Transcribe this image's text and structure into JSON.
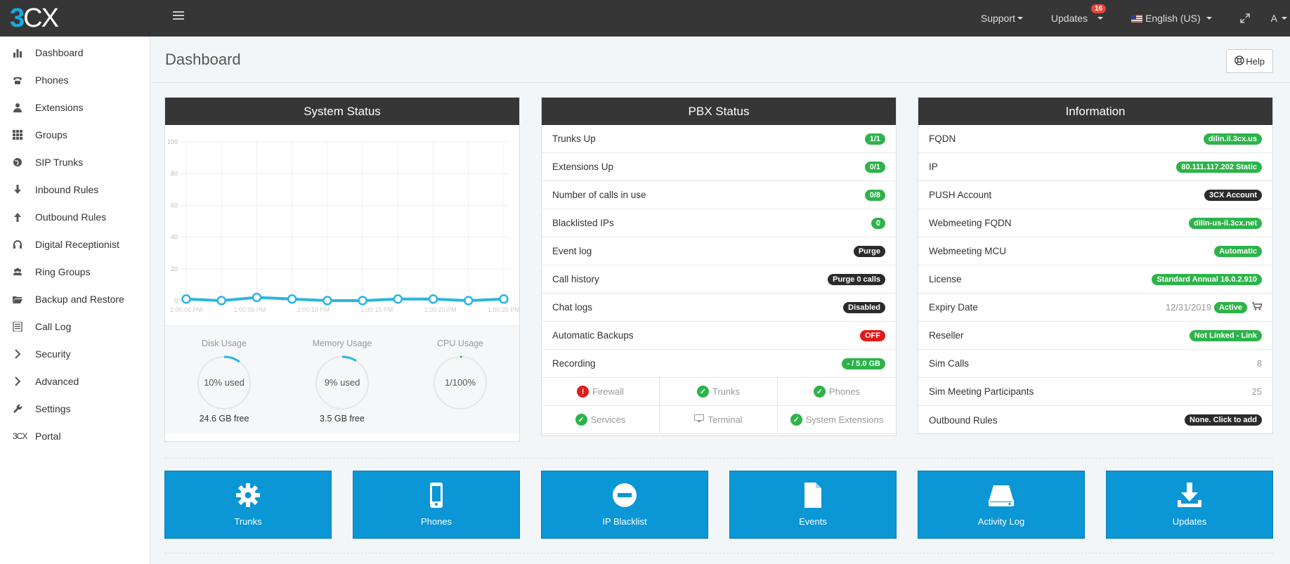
{
  "header": {
    "logo_prefix": "3",
    "logo_suffix": "CX",
    "nav": [
      {
        "label": "Support"
      },
      {
        "label": "Updates",
        "badge": "16"
      },
      {
        "label": "English (US)"
      },
      {
        "label": "A"
      }
    ]
  },
  "sidebar": {
    "items": [
      {
        "label": "Dashboard",
        "icon": "bar-chart-icon"
      },
      {
        "label": "Phones",
        "icon": "phone-icon"
      },
      {
        "label": "Extensions",
        "icon": "user-icon"
      },
      {
        "label": "Groups",
        "icon": "grid-icon"
      },
      {
        "label": "SIP Trunks",
        "icon": "globe-icon"
      },
      {
        "label": "Inbound Rules",
        "icon": "arrow-down-icon"
      },
      {
        "label": "Outbound Rules",
        "icon": "arrow-up-icon"
      },
      {
        "label": "Digital Receptionist",
        "icon": "headset-icon"
      },
      {
        "label": "Ring Groups",
        "icon": "users-icon"
      },
      {
        "label": "Backup and Restore",
        "icon": "folder-icon"
      },
      {
        "label": "Call Log",
        "icon": "list-icon"
      },
      {
        "label": "Security",
        "icon": "chevron-right-icon"
      },
      {
        "label": "Advanced",
        "icon": "chevron-right-icon"
      },
      {
        "label": "Settings",
        "icon": "wrench-icon"
      },
      {
        "label": "Portal",
        "icon": "3cx-logo-icon",
        "icon_text": "3CX"
      }
    ]
  },
  "page": {
    "title": "Dashboard",
    "help_label": "Help"
  },
  "system_status": {
    "title": "System Status",
    "gauges": [
      {
        "title": "Disk Usage",
        "label": "10% used",
        "free": "24.6 GB free",
        "percent": 10
      },
      {
        "title": "Memory Usage",
        "label": "9% used",
        "free": "3.5 GB free",
        "percent": 9
      },
      {
        "title": "CPU Usage",
        "label": "1/100%",
        "free": "",
        "percent": 1
      }
    ]
  },
  "chart_data": {
    "type": "line",
    "title": "",
    "ylim": [
      0,
      100
    ],
    "y_ticks": [
      0,
      20,
      40,
      60,
      80,
      100
    ],
    "x_tick_labels": [
      "1:00:00 PM",
      "1:00:05 PM",
      "1:00:10 PM",
      "1:00:15 PM",
      "1:00:20 PM",
      "1:00:25 PM"
    ],
    "series": [
      {
        "values": [
          1,
          0,
          2,
          1,
          0,
          0,
          1,
          1,
          0,
          1
        ]
      }
    ],
    "grid": true,
    "color": "#29b6e0"
  },
  "pbx_status": {
    "title": "PBX Status",
    "rows": [
      {
        "label": "Trunks Up",
        "value": "1/1",
        "style": "green"
      },
      {
        "label": "Extensions Up",
        "value": "0/1",
        "style": "green"
      },
      {
        "label": "Number of calls in use",
        "value": "0/8",
        "style": "green"
      },
      {
        "label": "Blacklisted IPs",
        "value": "0",
        "style": "green"
      },
      {
        "label": "Event log",
        "value": "Purge",
        "style": "dark"
      },
      {
        "label": "Call history",
        "value": "Purge 0 calls",
        "style": "dark"
      },
      {
        "label": "Chat logs",
        "value": "Disabled",
        "style": "dark"
      },
      {
        "label": "Automatic Backups",
        "value": "OFF",
        "style": "red"
      },
      {
        "label": "Recording",
        "value": "- / 5.0 GB",
        "style": "green"
      }
    ],
    "services": [
      {
        "label": "Firewall",
        "state": "error"
      },
      {
        "label": "Trunks",
        "state": "ok"
      },
      {
        "label": "Phones",
        "state": "ok"
      },
      {
        "label": "Services",
        "state": "ok"
      },
      {
        "label": "Terminal",
        "state": "terminal"
      },
      {
        "label": "System Extensions",
        "state": "ok"
      }
    ]
  },
  "information": {
    "title": "Information",
    "rows": [
      {
        "label": "FQDN",
        "value": "dilin.il.3cx.us",
        "style": "green"
      },
      {
        "label": "IP",
        "value": "80.111.117.202 Static",
        "style": "green"
      },
      {
        "label": "PUSH Account",
        "value": "3CX Account",
        "style": "dark"
      },
      {
        "label": "Webmeeting FQDN",
        "value": "dilin-us-il.3cx.net",
        "style": "green"
      },
      {
        "label": "Webmeeting MCU",
        "value": "Automatic",
        "style": "green"
      },
      {
        "label": "License",
        "value": "Standard Annual 16.0.2.910",
        "style": "green"
      },
      {
        "label": "Expiry Date",
        "value": "12/31/2019",
        "style": "grey",
        "extra": "Active"
      },
      {
        "label": "Reseller",
        "value": "Not Linked - Link",
        "style": "green"
      },
      {
        "label": "Sim Calls",
        "value": "8",
        "style": "grey"
      },
      {
        "label": "Sim Meeting Participants",
        "value": "25",
        "style": "grey"
      },
      {
        "label": "Outbound Rules",
        "value": "None. Click to add",
        "style": "dark"
      }
    ]
  },
  "tiles": [
    {
      "label": "Trunks",
      "icon": "gear-icon"
    },
    {
      "label": "Phones",
      "icon": "mobile-icon"
    },
    {
      "label": "IP Blacklist",
      "icon": "minus-circle-icon"
    },
    {
      "label": "Events",
      "icon": "file-icon"
    },
    {
      "label": "Activity Log",
      "icon": "hdd-icon"
    },
    {
      "label": "Updates",
      "icon": "download-icon"
    }
  ]
}
